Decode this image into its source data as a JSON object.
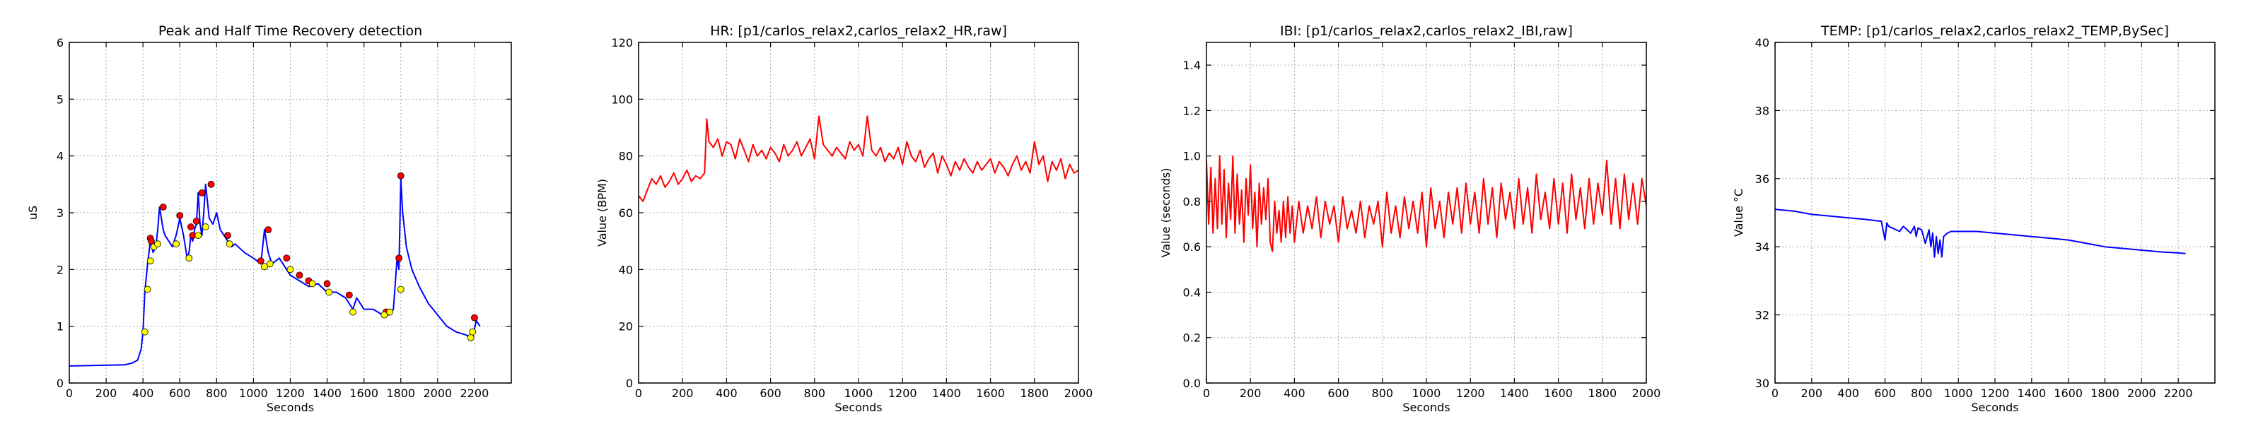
{
  "chart_data": [
    {
      "type": "line",
      "title": "Peak and Half Time Recovery detection",
      "xlabel": "Seconds",
      "ylabel": "uS",
      "xlim": [
        0,
        2400
      ],
      "ylim": [
        0,
        6
      ],
      "xticks": [
        0,
        200,
        400,
        600,
        800,
        1000,
        1200,
        1400,
        1600,
        1800,
        2000,
        2200
      ],
      "yticks": [
        0,
        1,
        2,
        3,
        4,
        5,
        6
      ],
      "grid": true,
      "series": [
        {
          "color": "#0000ff",
          "x": [
            0,
            300,
            340,
            370,
            390,
            400,
            410,
            425,
            440,
            455,
            470,
            480,
            490,
            500,
            510,
            520,
            540,
            560,
            580,
            600,
            620,
            640,
            650,
            660,
            670,
            680,
            690,
            700,
            710,
            720,
            730,
            740,
            750,
            760,
            780,
            800,
            820,
            840,
            860,
            880,
            900,
            950,
            1000,
            1040,
            1060,
            1080,
            1100,
            1140,
            1180,
            1200,
            1250,
            1300,
            1350,
            1400,
            1450,
            1500,
            1540,
            1560,
            1580,
            1600,
            1650,
            1700,
            1740,
            1760,
            1780,
            1790,
            1800,
            1810,
            1830,
            1860,
            1900,
            1950,
            2000,
            2050,
            2100,
            2150,
            2190,
            2200,
            2210,
            2230
          ],
          "values": [
            0.3,
            0.32,
            0.35,
            0.4,
            0.6,
            0.9,
            1.6,
            2.1,
            2.5,
            2.3,
            2.4,
            2.7,
            3.1,
            2.9,
            2.7,
            2.6,
            2.5,
            2.4,
            2.6,
            2.9,
            2.6,
            2.2,
            2.3,
            2.6,
            2.5,
            2.7,
            2.8,
            3.35,
            2.8,
            2.6,
            3.0,
            3.5,
            3.2,
            2.9,
            2.8,
            3.0,
            2.7,
            2.6,
            2.5,
            2.4,
            2.45,
            2.3,
            2.2,
            2.1,
            2.7,
            2.3,
            2.1,
            2.2,
            2.0,
            1.9,
            1.8,
            1.7,
            1.75,
            1.6,
            1.6,
            1.5,
            1.3,
            1.5,
            1.4,
            1.3,
            1.3,
            1.2,
            1.2,
            1.3,
            2.2,
            2.0,
            3.6,
            3.0,
            2.4,
            2.0,
            1.7,
            1.4,
            1.2,
            1.0,
            0.9,
            0.85,
            0.8,
            0.95,
            1.1,
            1.0
          ]
        }
      ],
      "markers": {
        "peaks": {
          "color": "#ff0000",
          "x": [
            440,
            445,
            510,
            600,
            660,
            670,
            690,
            720,
            770,
            860,
            1040,
            1080,
            1180,
            1250,
            1300,
            1400,
            1520,
            1720,
            1790,
            1800,
            2200
          ],
          "values": [
            2.55,
            2.5,
            3.1,
            2.95,
            2.75,
            2.6,
            2.85,
            3.35,
            3.5,
            2.6,
            2.15,
            2.7,
            2.2,
            1.9,
            1.8,
            1.75,
            1.55,
            1.25,
            2.2,
            3.65,
            1.15
          ]
        },
        "recovery": {
          "color": "#ffff00",
          "x": [
            410,
            425,
            440,
            460,
            480,
            580,
            650,
            700,
            740,
            870,
            1060,
            1090,
            1200,
            1320,
            1410,
            1540,
            1710,
            1740,
            1800,
            2180,
            2190
          ],
          "values": [
            0.9,
            1.65,
            2.15,
            2.4,
            2.45,
            2.45,
            2.2,
            2.6,
            2.75,
            2.45,
            2.05,
            2.1,
            2.0,
            1.75,
            1.6,
            1.25,
            1.2,
            1.25,
            1.65,
            0.8,
            0.9
          ]
        }
      }
    },
    {
      "type": "line",
      "title": "HR: [p1/carlos_relax2,carlos_relax2_HR,raw]",
      "xlabel": "Seconds",
      "ylabel": "Value (BPM)",
      "xlim": [
        0,
        2000
      ],
      "ylim": [
        0,
        120
      ],
      "xticks": [
        0,
        200,
        400,
        600,
        800,
        1000,
        1200,
        1400,
        1600,
        1800,
        2000
      ],
      "yticks": [
        0,
        20,
        40,
        60,
        80,
        100,
        120
      ],
      "grid": true,
      "series": [
        {
          "color": "#ff0000",
          "x": [
            0,
            20,
            40,
            60,
            80,
            100,
            120,
            140,
            160,
            180,
            200,
            220,
            240,
            260,
            280,
            300,
            310,
            320,
            340,
            360,
            380,
            400,
            420,
            440,
            460,
            480,
            500,
            520,
            540,
            560,
            580,
            600,
            620,
            640,
            660,
            680,
            700,
            720,
            740,
            760,
            780,
            800,
            820,
            840,
            860,
            880,
            900,
            920,
            940,
            960,
            980,
            1000,
            1020,
            1040,
            1060,
            1080,
            1100,
            1120,
            1140,
            1160,
            1180,
            1200,
            1220,
            1240,
            1260,
            1280,
            1300,
            1320,
            1340,
            1360,
            1380,
            1400,
            1420,
            1440,
            1460,
            1480,
            1500,
            1520,
            1540,
            1560,
            1580,
            1600,
            1620,
            1640,
            1660,
            1680,
            1700,
            1720,
            1740,
            1760,
            1780,
            1800,
            1820,
            1840,
            1860,
            1880,
            1900,
            1920,
            1940,
            1960,
            1980,
            2000
          ],
          "values": [
            66,
            64,
            68,
            72,
            70,
            73,
            69,
            71,
            74,
            70,
            72,
            75,
            71,
            73,
            72,
            74,
            93,
            85,
            83,
            86,
            80,
            85,
            84,
            79,
            86,
            82,
            78,
            84,
            80,
            82,
            79,
            83,
            81,
            78,
            84,
            80,
            82,
            85,
            80,
            83,
            86,
            79,
            94,
            84,
            82,
            80,
            83,
            81,
            79,
            85,
            82,
            84,
            80,
            94,
            82,
            80,
            83,
            78,
            81,
            79,
            83,
            77,
            85,
            80,
            78,
            82,
            76,
            79,
            81,
            74,
            80,
            77,
            73,
            78,
            75,
            79,
            76,
            74,
            78,
            75,
            77,
            79,
            74,
            78,
            76,
            73,
            77,
            80,
            75,
            78,
            74,
            85,
            77,
            80,
            71,
            78,
            75,
            79,
            72,
            77,
            74,
            75
          ]
        }
      ]
    },
    {
      "type": "line",
      "title": "IBI: [p1/carlos_relax2,carlos_relax2_IBI,raw]",
      "xlabel": "Seconds",
      "ylabel": "Value (seconds)",
      "xlim": [
        0,
        2000
      ],
      "ylim": [
        0,
        1.5
      ],
      "xticks": [
        0,
        200,
        400,
        600,
        800,
        1000,
        1200,
        1400,
        1600,
        1800,
        2000
      ],
      "yticks": [
        0.0,
        0.2,
        0.4,
        0.6,
        0.8,
        1.0,
        1.2,
        1.4
      ],
      "grid": true,
      "series": [
        {
          "color": "#ff0000",
          "x": [
            0,
            10,
            20,
            30,
            40,
            50,
            60,
            70,
            80,
            90,
            100,
            110,
            120,
            130,
            140,
            150,
            160,
            170,
            180,
            190,
            200,
            210,
            220,
            230,
            240,
            250,
            260,
            270,
            280,
            290,
            300,
            310,
            320,
            330,
            340,
            350,
            360,
            370,
            380,
            390,
            400,
            420,
            440,
            460,
            480,
            500,
            520,
            540,
            560,
            580,
            600,
            620,
            640,
            660,
            680,
            700,
            720,
            740,
            760,
            780,
            800,
            820,
            840,
            860,
            880,
            900,
            920,
            940,
            960,
            980,
            1000,
            1020,
            1040,
            1060,
            1080,
            1100,
            1120,
            1140,
            1160,
            1180,
            1200,
            1220,
            1240,
            1260,
            1280,
            1300,
            1320,
            1340,
            1360,
            1380,
            1400,
            1420,
            1440,
            1460,
            1480,
            1500,
            1520,
            1540,
            1560,
            1580,
            1600,
            1620,
            1640,
            1660,
            1680,
            1700,
            1720,
            1740,
            1760,
            1780,
            1800,
            1820,
            1840,
            1860,
            1880,
            1900,
            1920,
            1940,
            1960,
            1980,
            2000
          ],
          "values": [
            0.98,
            0.7,
            0.95,
            0.66,
            0.9,
            0.68,
            1.0,
            0.7,
            0.94,
            0.64,
            0.88,
            0.72,
            1.0,
            0.66,
            0.92,
            0.7,
            0.85,
            0.62,
            0.9,
            0.74,
            0.96,
            0.68,
            0.84,
            0.6,
            0.88,
            0.7,
            0.86,
            0.72,
            0.9,
            0.62,
            0.58,
            0.8,
            0.66,
            0.76,
            0.62,
            0.8,
            0.64,
            0.82,
            0.66,
            0.78,
            0.62,
            0.8,
            0.66,
            0.78,
            0.68,
            0.82,
            0.64,
            0.8,
            0.7,
            0.78,
            0.62,
            0.82,
            0.68,
            0.76,
            0.66,
            0.8,
            0.64,
            0.78,
            0.7,
            0.8,
            0.6,
            0.84,
            0.66,
            0.78,
            0.64,
            0.82,
            0.68,
            0.8,
            0.66,
            0.84,
            0.6,
            0.86,
            0.68,
            0.8,
            0.64,
            0.84,
            0.7,
            0.86,
            0.66,
            0.88,
            0.7,
            0.84,
            0.66,
            0.9,
            0.7,
            0.86,
            0.64,
            0.88,
            0.72,
            0.84,
            0.68,
            0.9,
            0.7,
            0.86,
            0.66,
            0.92,
            0.72,
            0.84,
            0.68,
            0.9,
            0.7,
            0.88,
            0.66,
            0.92,
            0.72,
            0.86,
            0.68,
            0.9,
            0.7,
            0.88,
            0.74,
            0.98,
            0.7,
            0.9,
            0.68,
            0.92,
            0.72,
            0.88,
            0.7,
            0.9,
            0.78
          ]
        }
      ]
    },
    {
      "type": "line",
      "title": "TEMP: [p1/carlos_relax2,carlos_relax2_TEMP,BySec]",
      "xlabel": "Seconds",
      "ylabel": "Value °C",
      "xlim": [
        0,
        2400
      ],
      "ylim": [
        30,
        40
      ],
      "xticks": [
        0,
        200,
        400,
        600,
        800,
        1000,
        1200,
        1400,
        1600,
        1800,
        2000,
        2200
      ],
      "yticks": [
        30,
        32,
        34,
        36,
        38,
        40
      ],
      "grid": true,
      "series": [
        {
          "color": "#0000ff",
          "x": [
            0,
            100,
            200,
            300,
            400,
            500,
            580,
            600,
            610,
            620,
            640,
            660,
            680,
            700,
            740,
            760,
            770,
            780,
            800,
            820,
            840,
            850,
            860,
            870,
            880,
            890,
            900,
            910,
            920,
            940,
            960,
            1000,
            1100,
            1200,
            1300,
            1400,
            1500,
            1600,
            1700,
            1800,
            1900,
            2000,
            2100,
            2200,
            2240
          ],
          "values": [
            35.1,
            35.05,
            34.95,
            34.9,
            34.85,
            34.8,
            34.75,
            34.2,
            34.7,
            34.6,
            34.55,
            34.5,
            34.45,
            34.6,
            34.4,
            34.6,
            34.3,
            34.55,
            34.5,
            34.1,
            34.5,
            34.0,
            34.4,
            33.7,
            34.3,
            33.8,
            34.2,
            33.7,
            34.3,
            34.4,
            34.45,
            34.45,
            34.45,
            34.4,
            34.35,
            34.3,
            34.25,
            34.2,
            34.1,
            34.0,
            33.95,
            33.9,
            33.85,
            33.82,
            33.8
          ]
        }
      ]
    }
  ]
}
